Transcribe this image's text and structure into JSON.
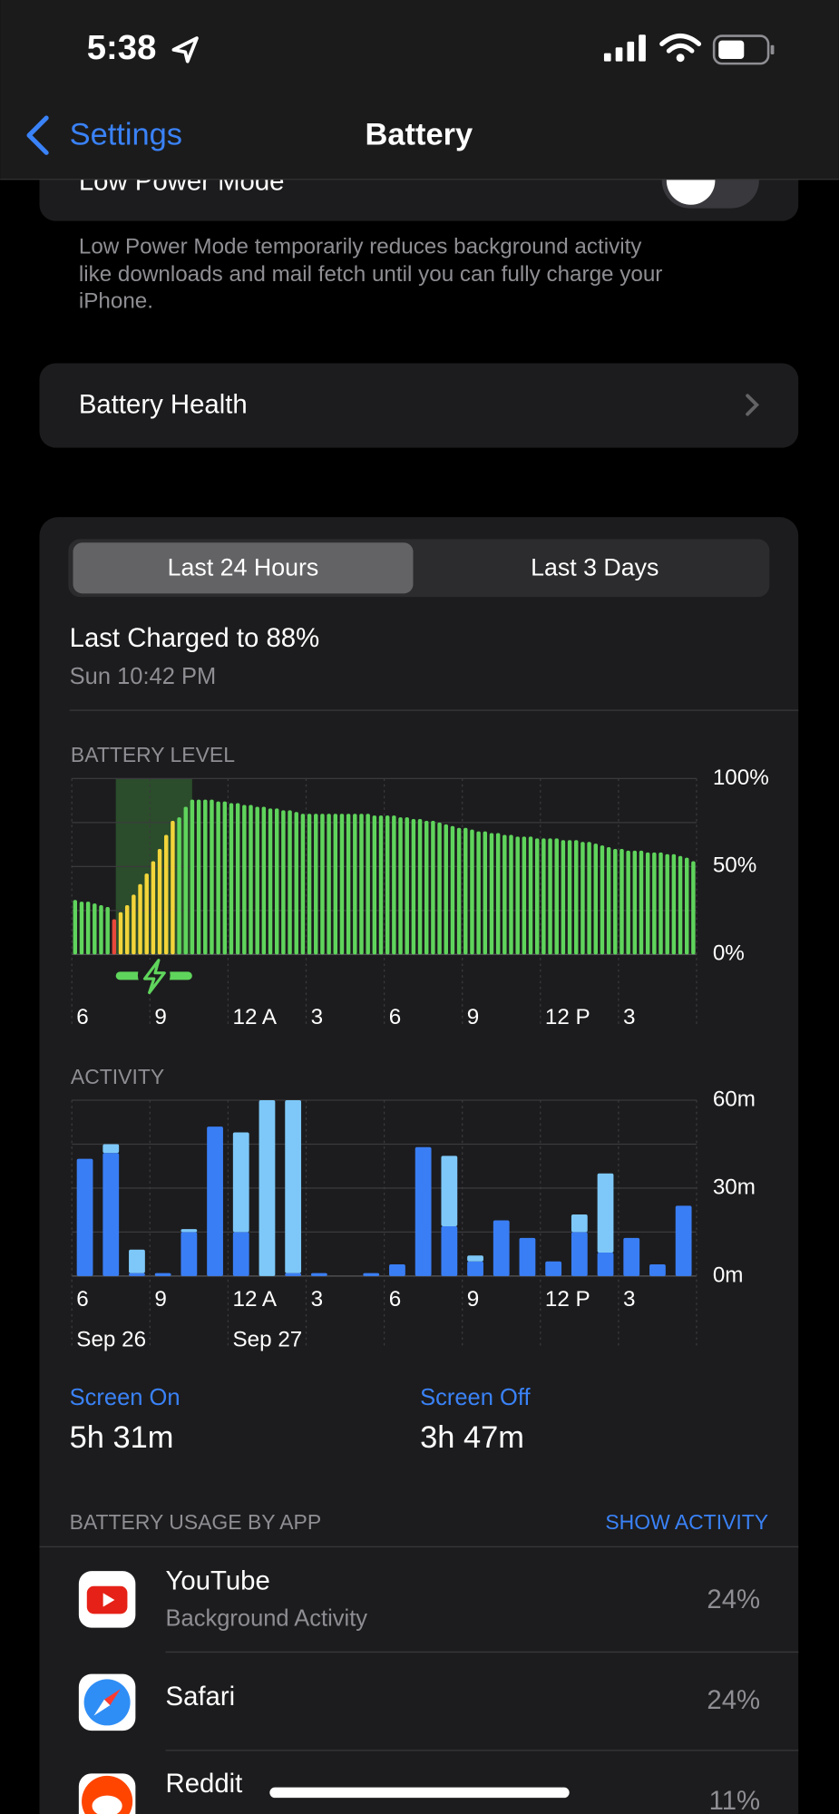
{
  "status_bar": {
    "time": "5:38"
  },
  "nav": {
    "back": "Settings",
    "title": "Battery"
  },
  "low_power": {
    "label": "Low Power Mode",
    "description_lines": [
      "Low Power Mode temporarily reduces background activity",
      "like downloads and mail fetch until you can fully charge your",
      "iPhone."
    ]
  },
  "battery_health": {
    "label": "Battery Health"
  },
  "segments": {
    "selected": "Last 24 Hours",
    "other": "Last 3 Days"
  },
  "last_charged": {
    "title": "Last Charged to 88%",
    "time": "Sun 10:42 PM"
  },
  "chart_data": [
    {
      "type": "bar",
      "title": "BATTERY LEVEL",
      "categories": [
        "6",
        null,
        null,
        null,
        null,
        null,
        null,
        null,
        null,
        null,
        null,
        null,
        "9",
        null,
        null,
        null,
        null,
        null,
        null,
        null,
        null,
        null,
        null,
        null,
        "12 A",
        null,
        null,
        null,
        null,
        null,
        null,
        null,
        null,
        null,
        null,
        null,
        "3",
        null,
        null,
        null,
        null,
        null,
        null,
        null,
        null,
        null,
        null,
        null,
        "6",
        null,
        null,
        null,
        null,
        null,
        null,
        null,
        null,
        null,
        null,
        null,
        "9",
        null,
        null,
        null,
        null,
        null,
        null,
        null,
        null,
        null,
        null,
        null,
        "12 P",
        null,
        null,
        null,
        null,
        null,
        null,
        null,
        null,
        null,
        null,
        null,
        "3",
        null,
        null,
        null,
        null,
        null,
        null,
        null,
        null,
        null,
        null,
        null
      ],
      "series": [
        {
          "color": "#5fd45c",
          "values": [
            31,
            30,
            30,
            29,
            28,
            27,
            null,
            null,
            null,
            null,
            null,
            null,
            null,
            null,
            null,
            null,
            78,
            84,
            88,
            88,
            88,
            88,
            87,
            87,
            86,
            86,
            85,
            85,
            84,
            84,
            83,
            83,
            82,
            82,
            81,
            80,
            80,
            80,
            80,
            80,
            80,
            80,
            80,
            80,
            80,
            80,
            79,
            79,
            79,
            79,
            78,
            78,
            77,
            77,
            76,
            76,
            75,
            74,
            73,
            72,
            72,
            71,
            70,
            70,
            69,
            69,
            68,
            68,
            67,
            67,
            67,
            66,
            66,
            66,
            66,
            65,
            65,
            65,
            64,
            64,
            63,
            62,
            61,
            60,
            60,
            59,
            59,
            59,
            58,
            58,
            58,
            57,
            57,
            56,
            55,
            53
          ]
        },
        {
          "color": "#e8473b",
          "values": [
            null,
            null,
            null,
            null,
            null,
            null,
            20,
            null,
            null,
            null,
            null,
            null,
            null,
            null,
            null,
            null,
            null,
            null,
            null,
            null,
            null,
            null,
            null,
            null,
            null,
            null,
            null,
            null,
            null,
            null,
            null,
            null,
            null,
            null,
            null,
            null,
            null,
            null,
            null,
            null,
            null,
            null,
            null,
            null,
            null,
            null,
            null,
            null,
            null,
            null,
            null,
            null,
            null,
            null,
            null,
            null,
            null,
            null,
            null,
            null,
            null,
            null,
            null,
            null,
            null,
            null,
            null,
            null,
            null,
            null,
            null,
            null,
            null,
            null,
            null,
            null,
            null,
            null,
            null,
            null,
            null,
            null,
            null,
            null,
            null,
            null,
            null,
            null,
            null,
            null,
            null,
            null,
            null,
            null,
            null,
            null
          ]
        },
        {
          "color": "#f3d43a",
          "values": [
            null,
            null,
            null,
            null,
            null,
            null,
            null,
            24,
            28,
            34,
            40,
            46,
            53,
            60,
            68,
            76,
            null,
            null,
            null,
            null,
            null,
            null,
            null,
            null,
            null,
            null,
            null,
            null,
            null,
            null,
            null,
            null,
            null,
            null,
            null,
            null,
            null,
            null,
            null,
            null,
            null,
            null,
            null,
            null,
            null,
            null,
            null,
            null,
            null,
            null,
            null,
            null,
            null,
            null,
            null,
            null,
            null,
            null,
            null,
            null,
            null,
            null,
            null,
            null,
            null,
            null,
            null,
            null,
            null,
            null,
            null,
            null,
            null,
            null,
            null,
            null,
            null,
            null,
            null,
            null,
            null,
            null,
            null,
            null,
            null,
            null,
            null,
            null,
            null,
            null,
            null,
            null,
            null,
            null,
            null,
            null
          ]
        }
      ],
      "ylim": [
        0,
        100
      ],
      "yticks": [
        {
          "value": 0,
          "label": "0%"
        },
        {
          "value": 50,
          "label": "50%"
        },
        {
          "value": 100,
          "label": "100%"
        }
      ],
      "minor_yticks": [
        25,
        75
      ],
      "grid": true
    },
    {
      "type": "bar",
      "title": "ACTIVITY",
      "stacked": true,
      "categories": [
        "6",
        null,
        null,
        "9",
        null,
        null,
        "12 A",
        null,
        null,
        "3",
        null,
        null,
        "6",
        null,
        null,
        "9",
        null,
        null,
        "12 P",
        null,
        null,
        "3",
        null,
        null
      ],
      "secondary_categories": [
        "Sep 26",
        null,
        null,
        null,
        null,
        null,
        "Sep 27",
        null,
        null,
        null,
        null,
        null,
        null,
        null,
        null,
        null,
        null,
        null,
        null,
        null,
        null,
        null,
        null,
        null
      ],
      "series": [
        {
          "color": "#3a7ef5",
          "values": [
            40,
            42,
            1,
            1,
            15,
            51,
            15,
            0,
            1,
            1,
            0,
            1,
            4,
            44,
            17,
            5,
            19,
            13,
            5,
            15,
            8,
            13,
            4,
            24
          ]
        },
        {
          "color": "#7dc8f8",
          "values": [
            0,
            3,
            8,
            0,
            1,
            0,
            34,
            60,
            59,
            0,
            0,
            0,
            0,
            0,
            24,
            2,
            0,
            0,
            0,
            6,
            27,
            0,
            0,
            0
          ]
        }
      ],
      "ylim": [
        0,
        60
      ],
      "yticks": [
        {
          "value": 0,
          "label": "0m"
        },
        {
          "value": 30,
          "label": "30m"
        },
        {
          "value": 60,
          "label": "60m"
        }
      ],
      "minor_yticks": [
        15,
        45
      ],
      "grid": true
    }
  ],
  "screen_time": {
    "on_label": "Screen On",
    "on_value": "5h 31m",
    "off_label": "Screen Off",
    "off_value": "3h 47m"
  },
  "usage": {
    "title": "BATTERY USAGE BY APP",
    "action": "SHOW ACTIVITY",
    "apps": [
      {
        "name": "YouTube",
        "detail": "Background Activity",
        "percent": "24%"
      },
      {
        "name": "Safari",
        "percent": "24%"
      },
      {
        "name": "Reddit",
        "percent": "11%"
      }
    ]
  }
}
